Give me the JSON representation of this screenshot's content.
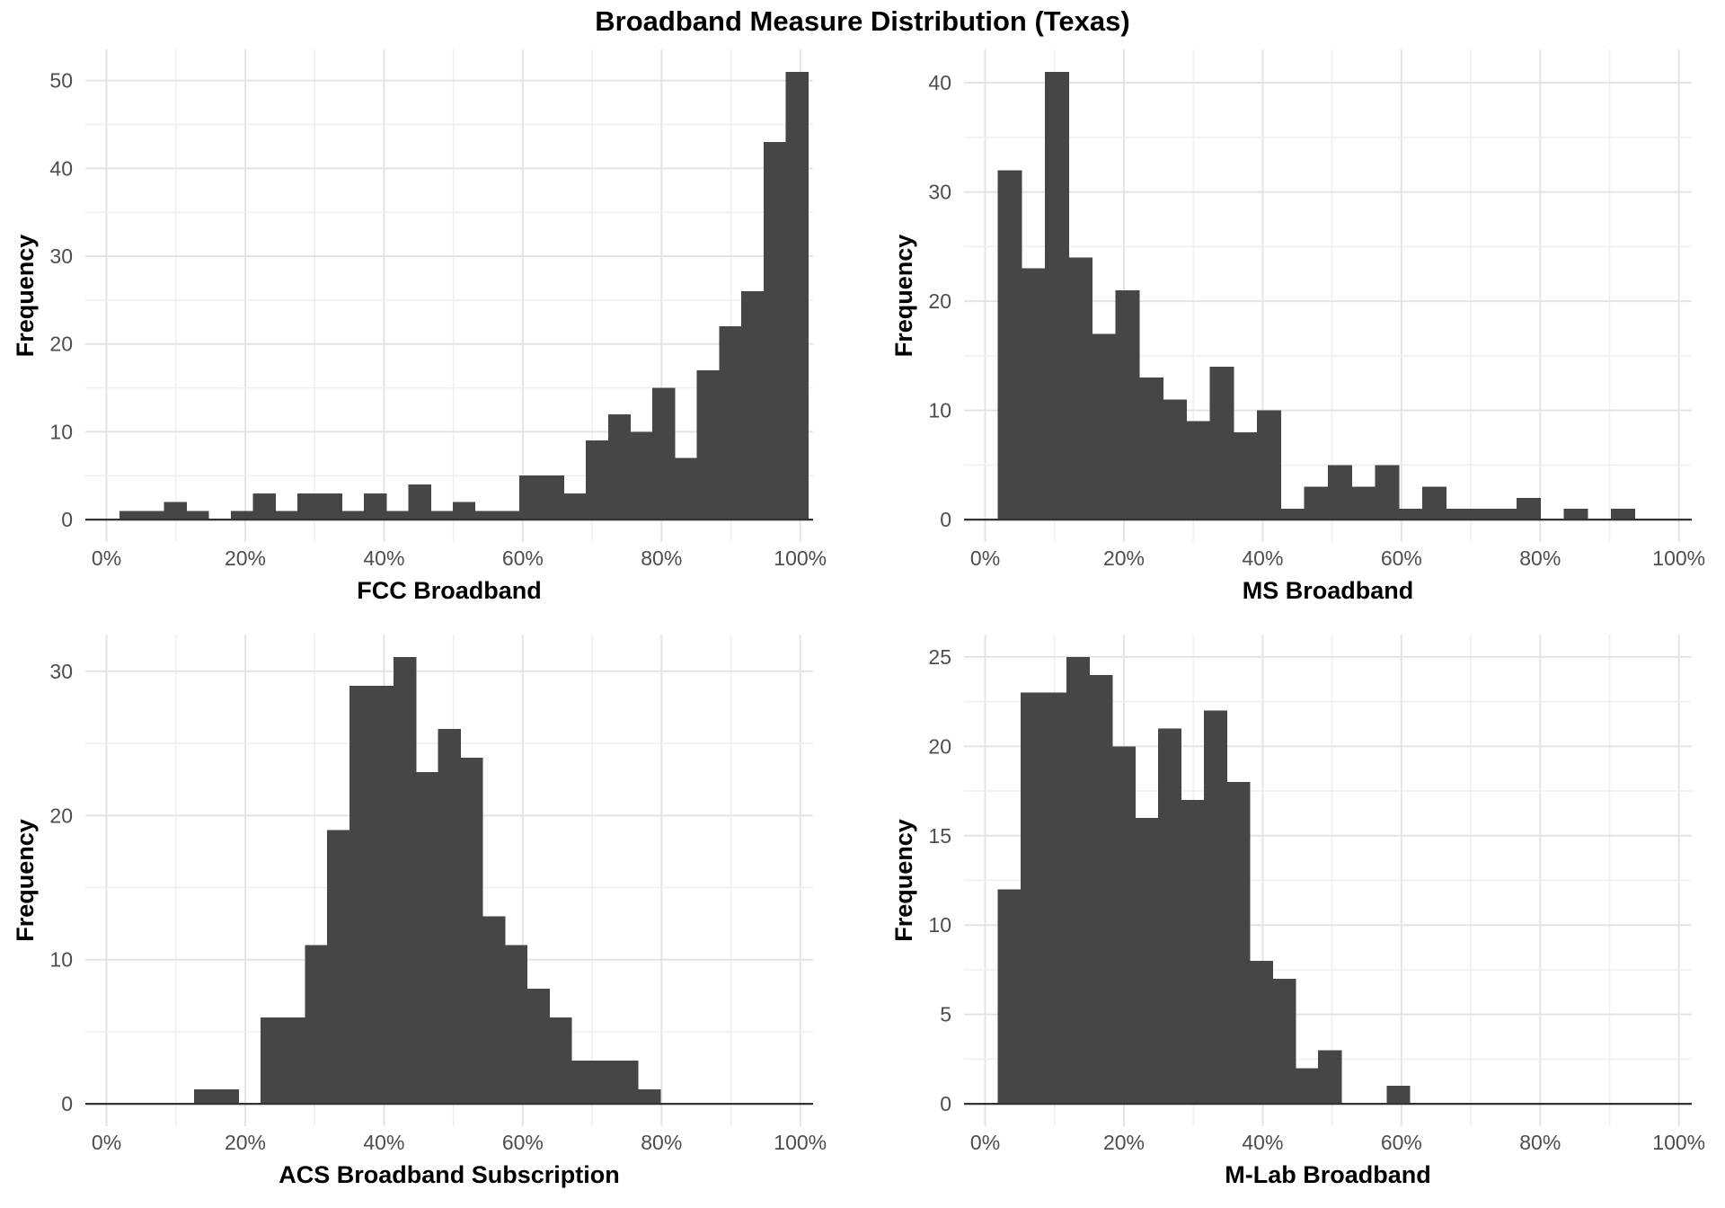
{
  "title": "Broadband Measure Distribution (Texas)",
  "colors": {
    "background": "#ffffff",
    "bar_fill": "#464646",
    "grid_major": "#E4E4E4",
    "grid_minor": "#EFEFEF",
    "axis_line": "#333333",
    "tick_text": "#4D4D4D",
    "title_text": "#000000"
  },
  "chart_data": [
    {
      "type": "bar",
      "subtype": "histogram",
      "xlabel": "FCC Broadband",
      "ylabel": "Frequency",
      "x_tick_labels": [
        "0%",
        "20%",
        "40%",
        "60%",
        "80%",
        "100%"
      ],
      "x_ticks_pct": [
        0,
        20,
        40,
        60,
        80,
        100
      ],
      "x_grid_step_pct": 10,
      "x_range_pct": [
        -3.05,
        101.85
      ],
      "y_ticks": [
        0,
        10,
        20,
        30,
        40,
        50
      ],
      "y_minor_step": 5,
      "y_max_data": 51,
      "bin_start_pct": 1.9,
      "bin_width_pct": 3.2,
      "counts": [
        1,
        1,
        2,
        1,
        0,
        1,
        3,
        1,
        3,
        3,
        1,
        3,
        1,
        4,
        1,
        2,
        1,
        1,
        5,
        5,
        3,
        9,
        12,
        10,
        15,
        7,
        17,
        22,
        26,
        43,
        51
      ],
      "grid": true,
      "legend": "none"
    },
    {
      "type": "bar",
      "subtype": "histogram",
      "xlabel": "MS Broadband",
      "ylabel": "Frequency",
      "x_tick_labels": [
        "0%",
        "20%",
        "40%",
        "60%",
        "80%",
        "100%"
      ],
      "x_ticks_pct": [
        0,
        20,
        40,
        60,
        80,
        100
      ],
      "x_grid_step_pct": 10,
      "x_range_pct": [
        -3.05,
        101.85
      ],
      "y_ticks": [
        0,
        10,
        20,
        30,
        40
      ],
      "y_minor_step": 5,
      "y_max_data": 41,
      "bin_start_pct": 1.8,
      "bin_width_pct": 3.4,
      "counts": [
        32,
        23,
        41,
        24,
        17,
        21,
        13,
        11,
        9,
        14,
        8,
        10,
        1,
        3,
        5,
        3,
        5,
        1,
        3,
        1,
        1,
        1,
        2,
        0,
        1,
        0,
        1
      ],
      "grid": true,
      "legend": "none"
    },
    {
      "type": "bar",
      "subtype": "histogram",
      "xlabel": "ACS Broadband Subscription",
      "ylabel": "Frequency",
      "x_tick_labels": [
        "0%",
        "20%",
        "40%",
        "60%",
        "80%",
        "100%"
      ],
      "x_ticks_pct": [
        0,
        20,
        40,
        60,
        80,
        100
      ],
      "x_grid_step_pct": 10,
      "x_range_pct": [
        -3.05,
        101.85
      ],
      "y_ticks": [
        0,
        10,
        20,
        30
      ],
      "y_minor_step": 5,
      "y_max_data": 31,
      "bin_start_pct": 12.6,
      "bin_width_pct": 3.2,
      "counts": [
        1,
        1,
        0,
        6,
        6,
        11,
        19,
        29,
        29,
        31,
        23,
        26,
        24,
        13,
        11,
        8,
        6,
        3,
        3,
        3,
        1
      ],
      "grid": true,
      "legend": "none"
    },
    {
      "type": "bar",
      "subtype": "histogram",
      "xlabel": "M-Lab Broadband",
      "ylabel": "Frequency",
      "x_tick_labels": [
        "0%",
        "20%",
        "40%",
        "60%",
        "80%",
        "100%"
      ],
      "x_ticks_pct": [
        0,
        20,
        40,
        60,
        80,
        100
      ],
      "x_grid_step_pct": 10,
      "x_range_pct": [
        -3.05,
        101.85
      ],
      "y_ticks": [
        0,
        5,
        10,
        15,
        20,
        25
      ],
      "y_minor_step": 2.5,
      "y_max_data": 25,
      "bin_start_pct": 1.8,
      "bin_width_pct": 3.3,
      "counts": [
        12,
        23,
        23,
        25,
        24,
        20,
        16,
        21,
        17,
        22,
        18,
        8,
        7,
        2,
        3,
        0,
        0,
        1
      ],
      "grid": true,
      "legend": "none"
    }
  ]
}
